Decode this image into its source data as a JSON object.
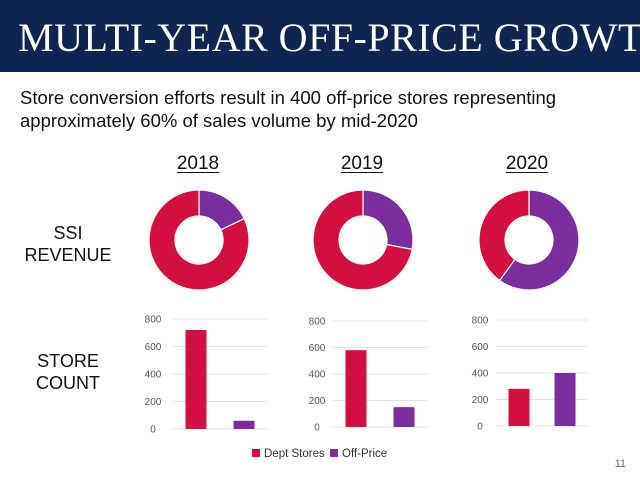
{
  "header": {
    "title": "MULTI-YEAR OFF-PRICE GROWTH",
    "subtitle": "Store conversion efforts result in 400 off-price stores representing approximately 60% of sales volume by mid-2020"
  },
  "row_labels": {
    "revenue": "SSI REVENUE",
    "revenue_line1": "SSI",
    "revenue_line2": "REVENUE",
    "store_count_line1": "STORE",
    "store_count_line2": "COUNT"
  },
  "years": [
    "2018",
    "2019",
    "2020"
  ],
  "legend": [
    {
      "label": "Dept Stores",
      "color": "#d1103f"
    },
    {
      "label": "Off-Price",
      "color": "#7a2e9e"
    }
  ],
  "page_number": "11",
  "colors": {
    "dept": "#d1103f",
    "offprice": "#7a2e9e",
    "header": "#0f2450",
    "grid": "#e3e3e3"
  },
  "chart_data": [
    {
      "type": "pie",
      "donut": true,
      "title": "2018",
      "categories": [
        "Dept Stores",
        "Off-Price"
      ],
      "values": [
        82,
        18
      ]
    },
    {
      "type": "pie",
      "donut": true,
      "title": "2019",
      "categories": [
        "Dept Stores",
        "Off-Price"
      ],
      "values": [
        72,
        28
      ]
    },
    {
      "type": "pie",
      "donut": true,
      "title": "2020",
      "categories": [
        "Dept Stores",
        "Off-Price"
      ],
      "values": [
        40,
        60
      ]
    },
    {
      "type": "bar",
      "title": "2018",
      "categories": [
        "Dept Stores",
        "Off-Price"
      ],
      "values": [
        720,
        60
      ],
      "ylim": [
        0,
        800
      ],
      "yticks": [
        0,
        200,
        400,
        600,
        800
      ],
      "grid": true
    },
    {
      "type": "bar",
      "title": "2019",
      "categories": [
        "Dept Stores",
        "Off-Price"
      ],
      "values": [
        580,
        150
      ],
      "ylim": [
        0,
        800
      ],
      "yticks": [
        0,
        200,
        400,
        600,
        800
      ],
      "grid": true
    },
    {
      "type": "bar",
      "title": "2020",
      "categories": [
        "Dept Stores",
        "Off-Price"
      ],
      "values": [
        280,
        400
      ],
      "ylim": [
        0,
        800
      ],
      "yticks": [
        0,
        200,
        400,
        600,
        800
      ],
      "grid": true
    }
  ]
}
